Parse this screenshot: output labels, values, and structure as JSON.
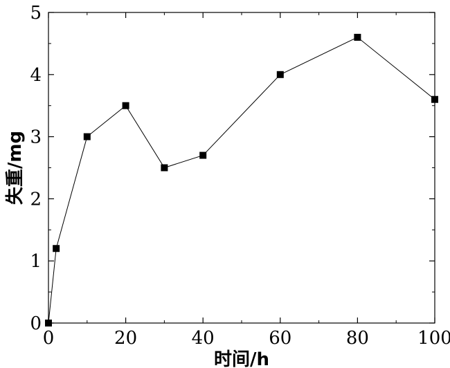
{
  "chart_data": {
    "type": "line",
    "xlabel": "时间/h",
    "ylabel": "失重/mg",
    "xlim": [
      0,
      100
    ],
    "ylim": [
      0,
      5
    ],
    "x_ticks": [
      0,
      20,
      40,
      60,
      80,
      100
    ],
    "y_ticks": [
      0,
      1,
      2,
      3,
      4,
      5
    ],
    "grid": false,
    "series": [
      {
        "x": [
          0,
          2,
          10,
          20,
          30,
          40,
          60,
          80,
          100
        ],
        "y": [
          0,
          1.2,
          3.0,
          3.5,
          2.5,
          2.7,
          4.0,
          4.6,
          3.6
        ],
        "marker": "square",
        "color": "#000000"
      }
    ]
  }
}
